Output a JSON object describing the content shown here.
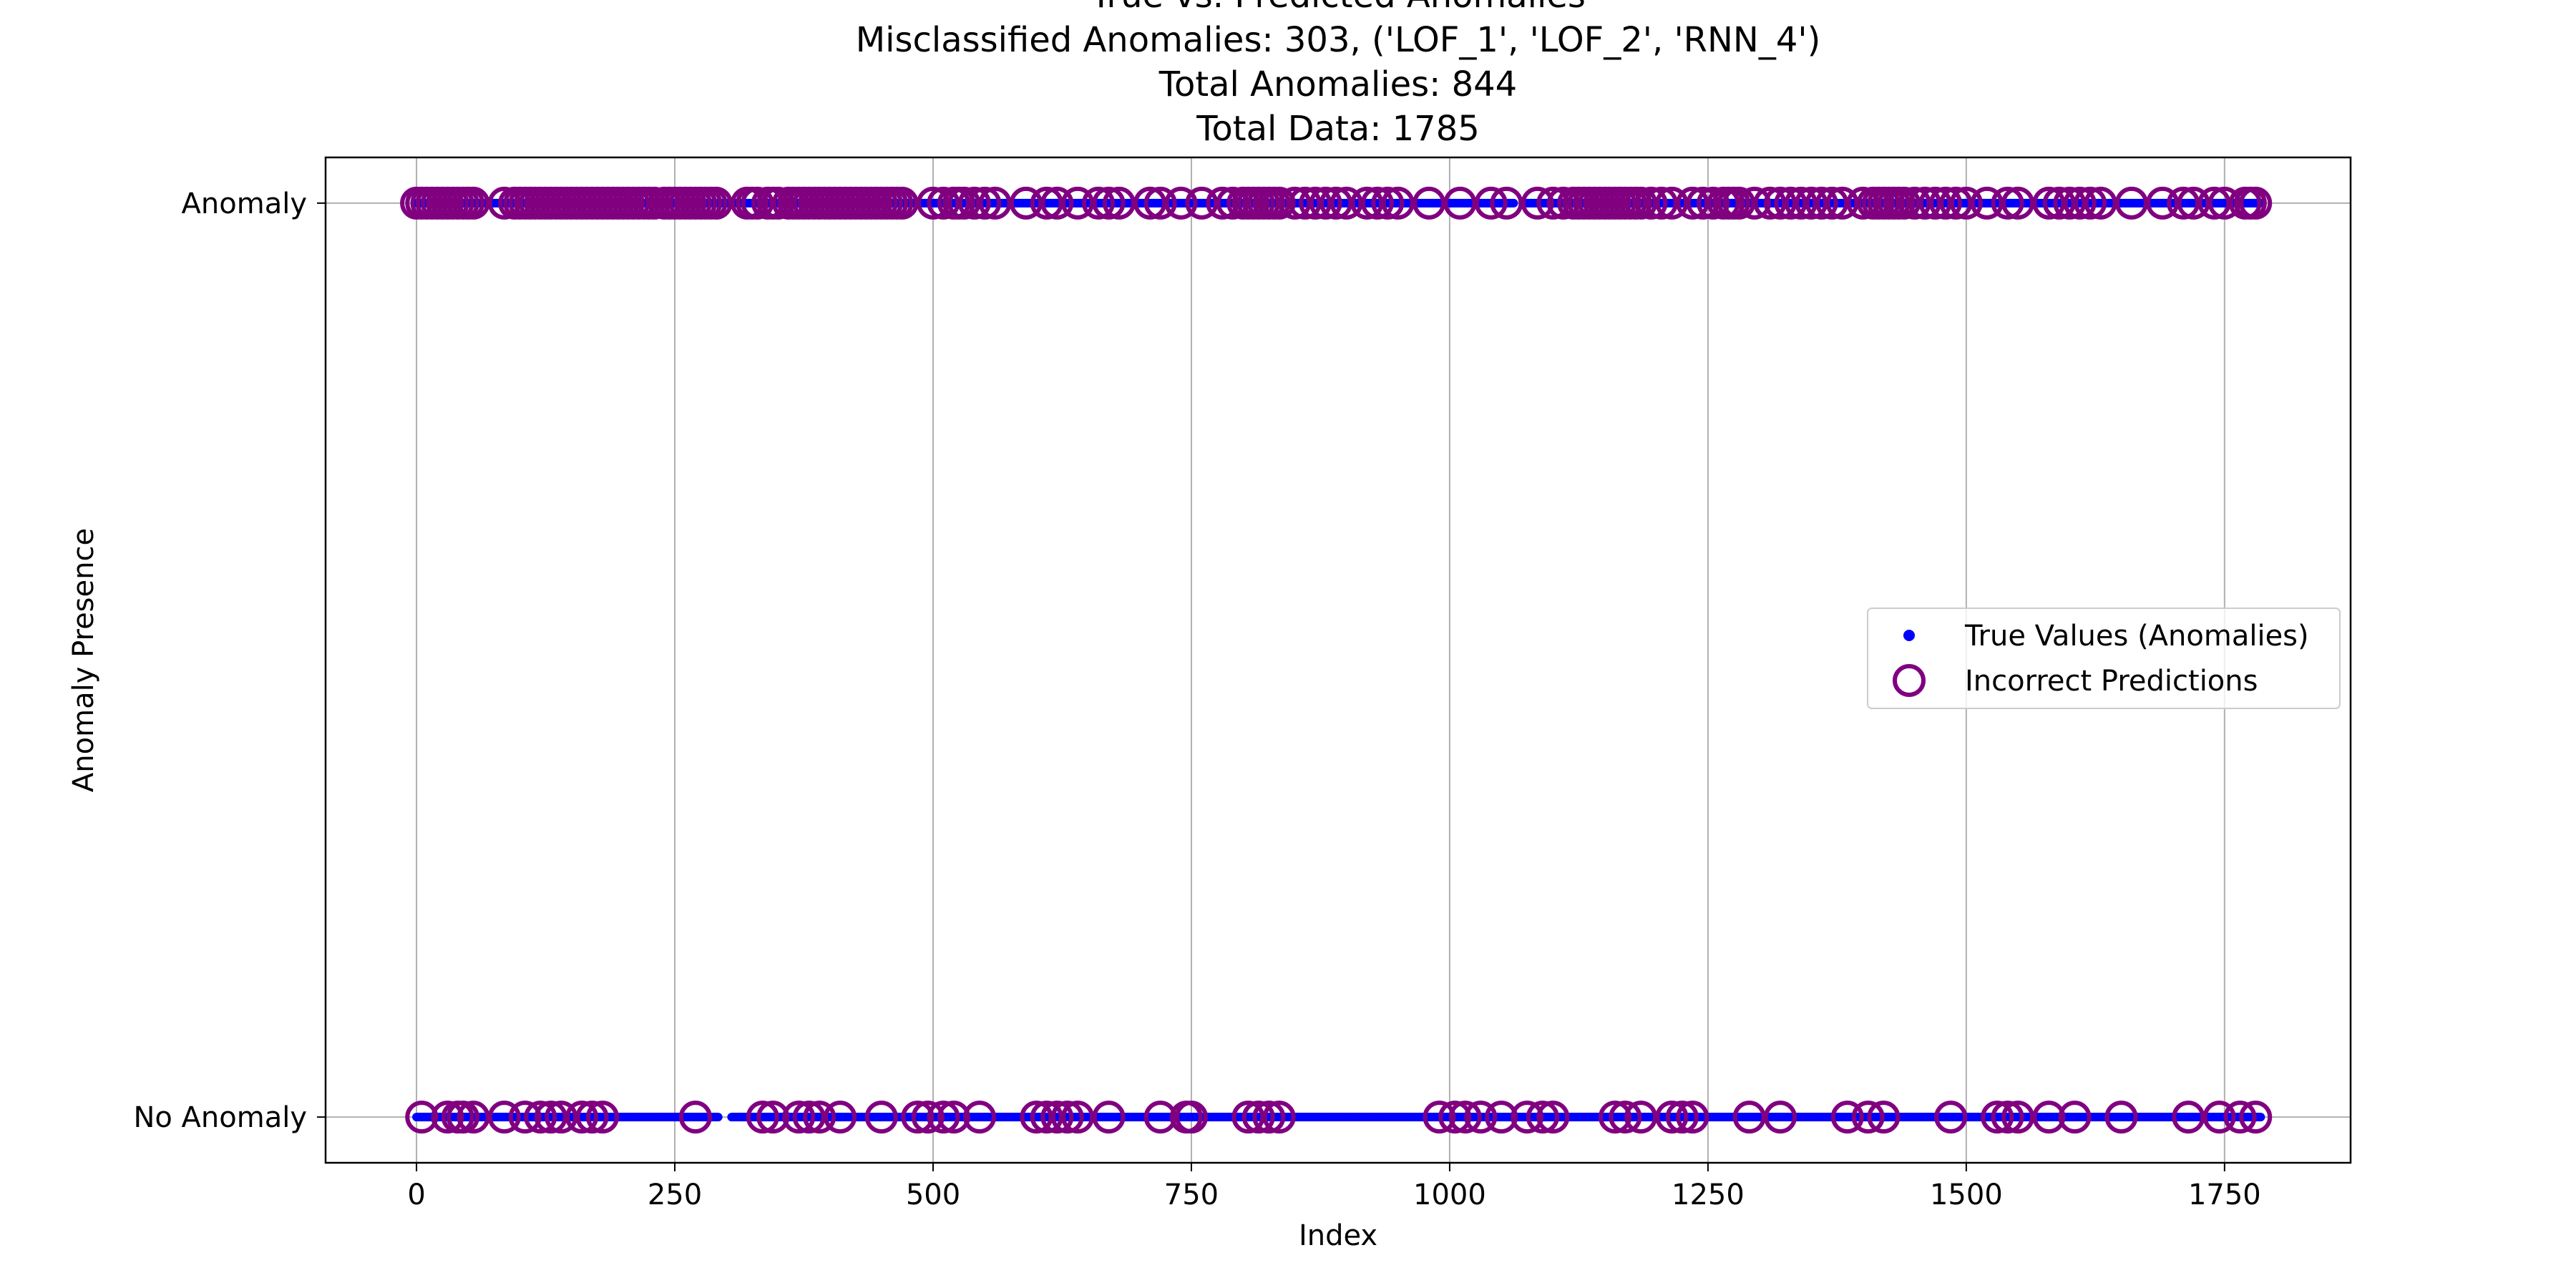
{
  "chart_data": {
    "type": "scatter",
    "title_lines": [
      "True vs. Predicted Anomalies",
      "Misclassified Anomalies: 303, ('LOF_1', 'LOF_2', 'RNN_4')",
      "Total Anomalies: 844",
      "Total Data: 1785"
    ],
    "xlabel": "Index",
    "ylabel": "Anomaly Presence",
    "xlim": [
      -88,
      1872
    ],
    "ylim": [
      -0.05,
      1.05
    ],
    "x_ticks": [
      0,
      250,
      500,
      750,
      1000,
      1250,
      1500,
      1750
    ],
    "y_ticks": [
      {
        "value": 0,
        "label": "No Anomaly"
      },
      {
        "value": 1,
        "label": "Anomaly"
      }
    ],
    "grid": true,
    "legend": {
      "placement": "center-right",
      "entries": [
        "True Values (Anomalies)",
        "Incorrect Predictions"
      ]
    },
    "colors": {
      "true_values": "#0000ff",
      "incorrect": "#800080",
      "grid": "#b0b0b0"
    },
    "series": [
      {
        "name": "True Values (Anomalies)",
        "marker": "dot",
        "segments": [
          {
            "y": 1,
            "ranges": [
              [
                0,
                1062
              ],
              [
                1072,
                1785
              ]
            ]
          },
          {
            "y": 0,
            "ranges": [
              [
                0,
                292
              ],
              [
                305,
                1785
              ]
            ]
          }
        ]
      },
      {
        "name": "Incorrect Predictions",
        "marker": "open-circle",
        "points": [
          {
            "y": 1,
            "x": [
              0,
              5,
              10,
              15,
              20,
              25,
              30,
              35,
              40,
              45,
              50,
              55,
              85,
              95,
              100,
              105,
              110,
              115,
              120,
              125,
              130,
              135,
              140,
              145,
              150,
              155,
              160,
              165,
              170,
              175,
              180,
              185,
              190,
              195,
              200,
              205,
              210,
              215,
              220,
              225,
              230,
              240,
              245,
              250,
              255,
              260,
              265,
              270,
              275,
              280,
              285,
              290,
              320,
              325,
              330,
              340,
              345,
              350,
              360,
              365,
              370,
              375,
              380,
              385,
              390,
              395,
              400,
              405,
              410,
              415,
              420,
              425,
              430,
              435,
              440,
              445,
              450,
              455,
              460,
              465,
              470,
              500,
              510,
              520,
              525,
              530,
              540,
              550,
              560,
              590,
              610,
              620,
              640,
              660,
              670,
              680,
              710,
              720,
              740,
              760,
              780,
              790,
              800,
              805,
              810,
              815,
              820,
              825,
              830,
              835,
              850,
              860,
              870,
              880,
              890,
              900,
              920,
              930,
              940,
              950,
              980,
              1010,
              1040,
              1055,
              1085,
              1100,
              1110,
              1120,
              1125,
              1130,
              1135,
              1140,
              1145,
              1150,
              1155,
              1160,
              1165,
              1170,
              1175,
              1180,
              1185,
              1195,
              1205,
              1215,
              1235,
              1245,
              1255,
              1265,
              1270,
              1275,
              1280,
              1295,
              1310,
              1320,
              1330,
              1340,
              1350,
              1360,
              1370,
              1380,
              1400,
              1410,
              1415,
              1420,
              1425,
              1430,
              1435,
              1440,
              1450,
              1460,
              1470,
              1480,
              1490,
              1500,
              1520,
              1540,
              1550,
              1580,
              1590,
              1600,
              1610,
              1620,
              1630,
              1660,
              1690,
              1710,
              1720,
              1740,
              1750,
              1770,
              1775,
              1780
            ]
          },
          {
            "y": 0,
            "x": [
              5,
              30,
              40,
              45,
              55,
              85,
              105,
              120,
              130,
              140,
              160,
              170,
              180,
              270,
              335,
              345,
              370,
              380,
              390,
              410,
              450,
              485,
              495,
              510,
              520,
              545,
              600,
              610,
              620,
              630,
              640,
              670,
              720,
              745,
              750,
              805,
              815,
              825,
              835,
              990,
              1005,
              1015,
              1030,
              1050,
              1075,
              1090,
              1100,
              1160,
              1170,
              1185,
              1215,
              1225,
              1235,
              1290,
              1320,
              1385,
              1405,
              1420,
              1485,
              1530,
              1540,
              1550,
              1580,
              1605,
              1650,
              1715,
              1745,
              1765,
              1780
            ]
          }
        ]
      }
    ]
  }
}
